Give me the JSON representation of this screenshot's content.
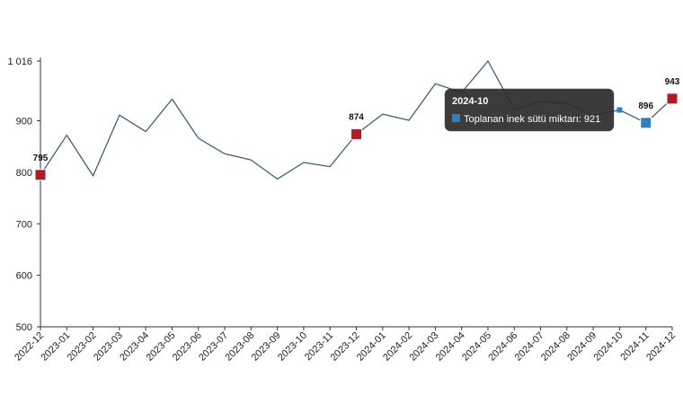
{
  "chart_data": {
    "type": "line",
    "categories": [
      "2022-12",
      "2023-01",
      "2023-02",
      "2023-03",
      "2023-04",
      "2023-05",
      "2023-06",
      "2023-07",
      "2023-08",
      "2023-09",
      "2023-10",
      "2023-11",
      "2023-12",
      "2024-01",
      "2024-02",
      "2024-03",
      "2024-04",
      "2024-05",
      "2024-06",
      "2024-07",
      "2024-08",
      "2024-09",
      "2024-10",
      "2024-11",
      "2024-12"
    ],
    "series": [
      {
        "name": "Toplanan inek sütü miktarı",
        "values": [
          795,
          872,
          793,
          911,
          879,
          942,
          866,
          836,
          824,
          787,
          819,
          811,
          874,
          913,
          901,
          972,
          955,
          1016,
          922,
          937,
          934,
          910,
          921,
          896,
          943
        ]
      }
    ],
    "y_ticks": [
      "500",
      "600",
      "700",
      "800",
      "900",
      "1 016"
    ],
    "ylim": [
      500,
      1016
    ],
    "grid": false,
    "line_color": "#3f5f75",
    "highlight_color": "#b01c24",
    "hover_color": "#2f7fc0",
    "highlight_points": [
      {
        "index": 0,
        "label": "795"
      },
      {
        "index": 12,
        "label": "874"
      },
      {
        "index": 24,
        "label": "943"
      }
    ],
    "hover_point": {
      "index": 23,
      "label": "896"
    },
    "tooltip_point_index": 22,
    "tooltip": {
      "title": "2024-10",
      "text": "Toplanan inek sütü miktarı: 921",
      "marker_color": "#2f7fc0"
    }
  }
}
